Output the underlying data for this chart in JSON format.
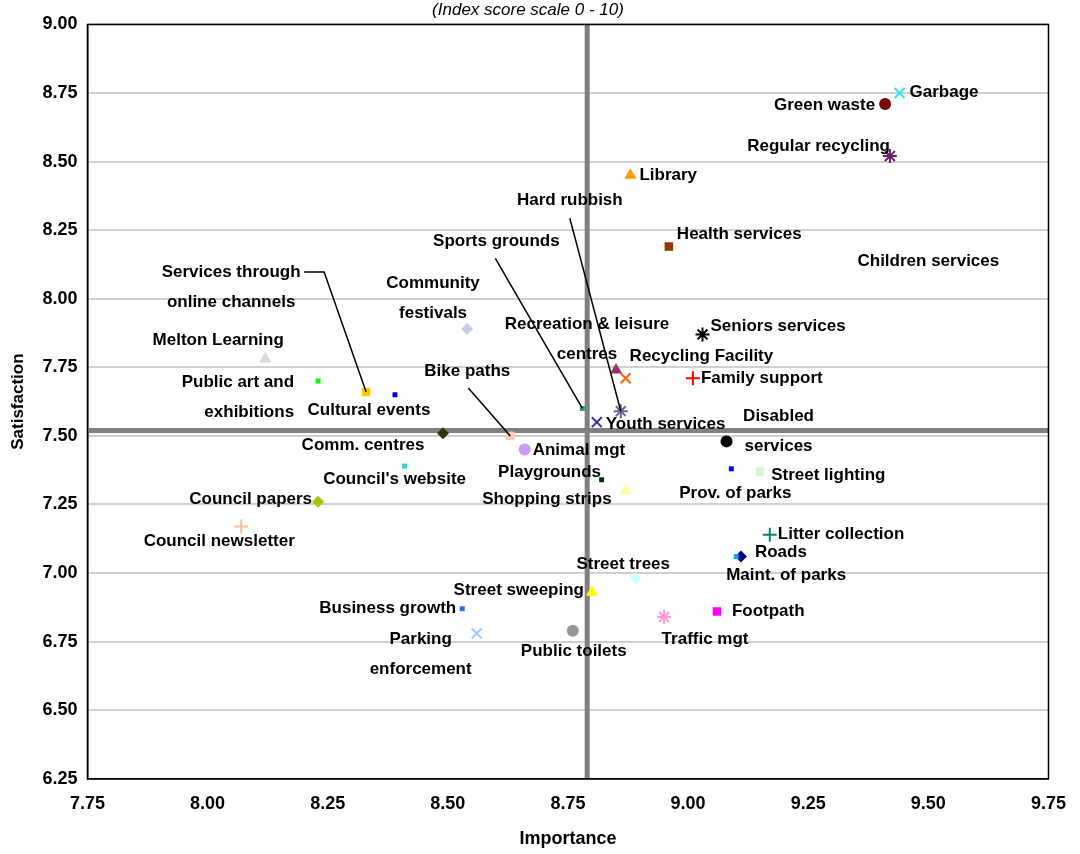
{
  "chart_data": {
    "type": "scatter",
    "subtitle": "(Index score scale 0 - 10)",
    "xlabel": "Importance",
    "ylabel": "Satisfaction",
    "xlim": [
      7.75,
      9.75
    ],
    "xticks": [
      {
        "value": 7.75,
        "label": "7.75"
      },
      {
        "value": 8,
        "label": "8.00"
      },
      {
        "value": 8.25,
        "label": "8.25"
      },
      {
        "value": 8.5,
        "label": "8.50"
      },
      {
        "value": 8.75,
        "label": "8.75"
      },
      {
        "value": 9,
        "label": "9.00"
      },
      {
        "value": 9.25,
        "label": "9.25"
      },
      {
        "value": 9.5,
        "label": "9.50"
      },
      {
        "value": 9.75,
        "label": "9.75"
      }
    ],
    "ylim": [
      6.25,
      9
    ],
    "yticks": [
      {
        "value": 6.25,
        "label": "6.25"
      },
      {
        "value": 6.5,
        "label": "6.50"
      },
      {
        "value": 6.75,
        "label": "6.75"
      },
      {
        "value": 7,
        "label": "7.00"
      },
      {
        "value": 7.25,
        "label": "7.25"
      },
      {
        "value": 7.5,
        "label": "7.50"
      },
      {
        "value": 7.75,
        "label": "7.75"
      },
      {
        "value": 8,
        "label": "8.00"
      },
      {
        "value": 8.25,
        "label": "8.25"
      },
      {
        "value": 8.5,
        "label": "8.50"
      },
      {
        "value": 8.75,
        "label": "8.75"
      },
      {
        "value": 9,
        "label": "9.00"
      }
    ],
    "grid": "y",
    "annotations": [
      "Children services"
    ],
    "ref_lines": [
      {
        "axis": "x",
        "value": 8.79,
        "color": "#808080"
      },
      {
        "axis": "y",
        "value": 7.52,
        "color": "#808080"
      }
    ],
    "series": [
      {
        "name": "Garbage",
        "color": "#33e0f0",
        "marker": "cross",
        "x": [
          9.44
        ],
        "values": [
          8.75
        ]
      },
      {
        "name": "Green waste",
        "color": "#7f0000",
        "marker": "circle",
        "x": [
          9.41
        ],
        "values": [
          8.71
        ]
      },
      {
        "name": "Regular recycling",
        "color": "#6a1b6a",
        "marker": "cross",
        "x": [
          9.42
        ],
        "values": [
          8.52
        ]
      },
      {
        "name": "Library",
        "color": "#ff9900",
        "marker": "triangle",
        "x": [
          8.88
        ],
        "values": [
          8.45
        ]
      },
      {
        "name": "Health services",
        "color": "#993300",
        "marker": "square",
        "x": [
          8.96
        ],
        "values": [
          8.19
        ]
      },
      {
        "name": "Seniors services",
        "color": "#000000",
        "marker": "cross",
        "x": [
          9.03
        ],
        "values": [
          7.87
        ]
      },
      {
        "name": "Recreation & leisure centres",
        "color": "#993366",
        "marker": "triangle",
        "x": [
          8.85
        ],
        "values": [
          7.74
        ]
      },
      {
        "name": "Recycling Facility",
        "color": "#ff6600",
        "marker": "cross",
        "x": [
          8.87
        ],
        "values": [
          7.71
        ]
      },
      {
        "name": "Family support",
        "color": "#ff0000",
        "marker": "cross",
        "x": [
          9.01
        ],
        "values": [
          7.71
        ]
      },
      {
        "name": "Sports grounds",
        "color": "#339966",
        "marker": "square",
        "x": [
          8.78
        ],
        "values": [
          7.6
        ]
      },
      {
        "name": "Hard rubbish",
        "color": "#666699",
        "marker": "cross",
        "x": [
          8.86
        ],
        "values": [
          7.59
        ]
      },
      {
        "name": "Youth services",
        "color": "#333399",
        "marker": "cross",
        "x": [
          8.81
        ],
        "values": [
          7.55
        ]
      },
      {
        "name": "Disabled services",
        "color": "#000000",
        "marker": "circle",
        "x": [
          9.08
        ],
        "values": [
          7.48
        ]
      },
      {
        "name": "Melton Learning",
        "color": "#d9d9d9",
        "marker": "triangle",
        "x": [
          8.12
        ],
        "values": [
          7.78
        ]
      },
      {
        "name": "Public art and exhibitions",
        "color": "#00ff00",
        "marker": "square",
        "x": [
          8.23
        ],
        "values": [
          7.7
        ]
      },
      {
        "name": "Services through online channels",
        "color": "#ffcc00",
        "marker": "square",
        "x": [
          8.33
        ],
        "values": [
          7.66
        ]
      },
      {
        "name": "Cultural events",
        "color": "#0000ff",
        "marker": "square",
        "x": [
          8.39
        ],
        "values": [
          7.65
        ]
      },
      {
        "name": "Community festivals",
        "color": "#c5cde6",
        "marker": "diamond",
        "x": [
          8.54
        ],
        "values": [
          7.89
        ]
      },
      {
        "name": "Bike paths",
        "color": "#f8cbad",
        "marker": "square",
        "x": [
          8.63
        ],
        "values": [
          7.5
        ]
      },
      {
        "name": "Comm. centres",
        "color": "#333300",
        "marker": "diamond",
        "x": [
          8.49
        ],
        "values": [
          7.51
        ]
      },
      {
        "name": "Animal mgt",
        "color": "#cc99ff",
        "marker": "circle",
        "x": [
          8.66
        ],
        "values": [
          7.45
        ]
      },
      {
        "name": "Playgrounds",
        "color": "#003300",
        "marker": "square",
        "x": [
          8.82
        ],
        "values": [
          7.34
        ]
      },
      {
        "name": "Council's website",
        "color": "#33cccc",
        "marker": "square",
        "x": [
          8.41
        ],
        "values": [
          7.39
        ]
      },
      {
        "name": "Council papers",
        "color": "#99cc00",
        "marker": "diamond",
        "x": [
          8.23
        ],
        "values": [
          7.26
        ]
      },
      {
        "name": "Council newsletter",
        "color": "#fac090",
        "marker": "cross",
        "x": [
          8.07
        ],
        "values": [
          7.17
        ]
      },
      {
        "name": "Shopping strips",
        "color": "#ffff99",
        "marker": "triangle",
        "x": [
          8.87
        ],
        "values": [
          7.3
        ]
      },
      {
        "name": "Prov. of parks",
        "color": "#0000ff",
        "marker": "square",
        "x": [
          9.09
        ],
        "values": [
          7.38
        ]
      },
      {
        "name": "Street lighting",
        "color": "#ccffcc",
        "marker": "square",
        "x": [
          9.15
        ],
        "values": [
          7.37
        ]
      },
      {
        "name": "Litter collection",
        "color": "#008080",
        "marker": "cross",
        "x": [
          9.17
        ],
        "values": [
          7.14
        ]
      },
      {
        "name": "Maint. of parks",
        "color": "#00b0f0",
        "marker": "square",
        "x": [
          9.1
        ],
        "values": [
          7.06
        ]
      },
      {
        "name": "Roads",
        "color": "#000080",
        "marker": "diamond",
        "x": [
          9.11
        ],
        "values": [
          7.06
        ]
      },
      {
        "name": "Street trees",
        "color": "#ccffff",
        "marker": "diamond",
        "x": [
          8.89
        ],
        "values": [
          6.98
        ]
      },
      {
        "name": "Street sweeping",
        "color": "#ffff00",
        "marker": "triangle",
        "x": [
          8.8
        ],
        "values": [
          6.93
        ]
      },
      {
        "name": "Business growth",
        "color": "#3366ff",
        "marker": "square",
        "x": [
          8.53
        ],
        "values": [
          6.87
        ]
      },
      {
        "name": "Parking enforcement",
        "color": "#99ccff",
        "marker": "cross",
        "x": [
          8.56
        ],
        "values": [
          6.78
        ]
      },
      {
        "name": "Public toilets",
        "color": "#969696",
        "marker": "circle",
        "x": [
          8.76
        ],
        "values": [
          6.79
        ]
      },
      {
        "name": "Traffic mgt",
        "color": "#ff99cc",
        "marker": "cross",
        "x": [
          8.95
        ],
        "values": [
          6.84
        ]
      },
      {
        "name": "Footpath",
        "color": "#ff00ff",
        "marker": "square",
        "x": [
          9.06
        ],
        "values": [
          6.86
        ]
      }
    ]
  }
}
